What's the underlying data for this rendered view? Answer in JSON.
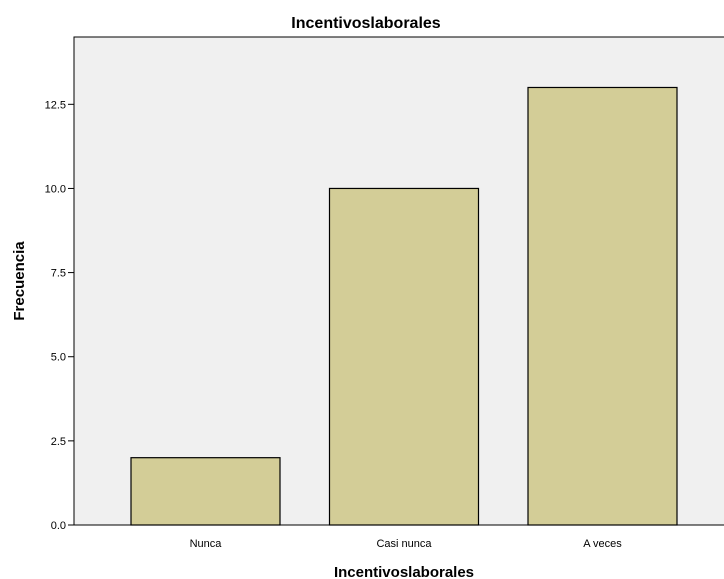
{
  "chart_data": {
    "type": "bar",
    "title": "Incentivoslaborales",
    "xlabel": "Incentivoslaborales",
    "ylabel": "Frecuencia",
    "categories": [
      "Nunca",
      "Casi nunca",
      "A veces"
    ],
    "values": [
      2,
      10,
      13
    ],
    "ylim": [
      0,
      14.5
    ],
    "yticks": [
      "0.0",
      "2.5",
      "5.0",
      "7.5",
      "10.0",
      "12.5"
    ],
    "grid": false,
    "colors": {
      "bar_fill": "#d3cd97",
      "bar_stroke": "#000000",
      "plot_background": "#f0f0f0",
      "page_background": "#ffffff"
    }
  }
}
